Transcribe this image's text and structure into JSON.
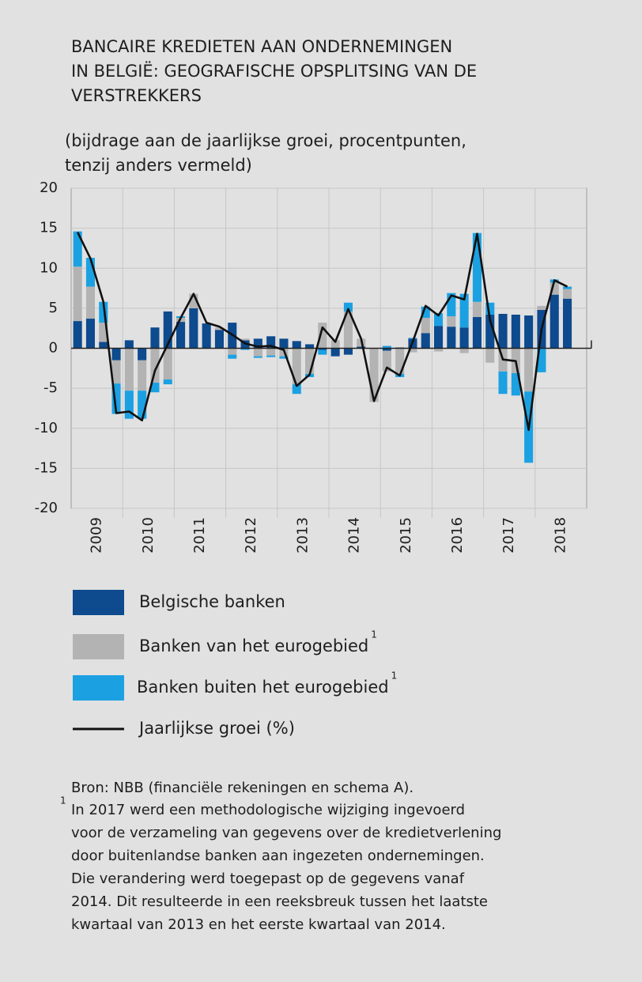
{
  "chart_data": {
    "type": "bar",
    "stacked": true,
    "title": [
      "BANCAIRE KREDIETEN AAN ONDERNEMINGEN",
      "IN BELGIË: GEOGRAFISCHE OPSPLITSING VAN DE",
      "VERSTREKKERS"
    ],
    "subtitle": [
      "(bijdrage aan de jaarlijkse groei, procentpunten,",
      "tenzij anders vermeld)"
    ],
    "categories": [
      null,
      "2009",
      null,
      null,
      null,
      "2010",
      null,
      null,
      null,
      "2011",
      null,
      null,
      null,
      "2012",
      null,
      null,
      null,
      "2013",
      null,
      null,
      null,
      "2014",
      null,
      null,
      null,
      "2015",
      null,
      null,
      null,
      "2016",
      null,
      null,
      null,
      "2017",
      null,
      null,
      null,
      "2018",
      null,
      null
    ],
    "ylim": [
      -20,
      20
    ],
    "yticks": [
      -20,
      -15,
      -10,
      -5,
      0,
      5,
      10,
      15,
      20
    ],
    "grid": true,
    "series": [
      {
        "name": "Belgische banken",
        "type": "bar",
        "color": "#0d4a8e",
        "values": [
          3.4,
          3.7,
          0.8,
          -1.5,
          1.0,
          -1.5,
          2.6,
          4.6,
          3.3,
          5.0,
          3.1,
          2.3,
          3.2,
          1.0,
          1.2,
          1.5,
          1.2,
          0.9,
          0.5,
          -0.2,
          -1.0,
          -0.8,
          0.2,
          0,
          -0.3,
          0.1,
          1.2,
          1.9,
          2.8,
          2.7,
          2.6,
          3.9,
          4.2,
          4.3,
          4.2,
          4.1,
          4.8,
          6.7,
          6.2,
          null
        ]
      },
      {
        "name": "Banken van het eurogebied",
        "note_mark": "1",
        "type": "bar",
        "color": "#b3b3b3",
        "values": [
          6.8,
          4.0,
          2.4,
          -2.9,
          -5.3,
          -3.8,
          -4.3,
          -3.9,
          0.5,
          1.8,
          0,
          0.3,
          -0.8,
          0.2,
          -1.0,
          -0.9,
          -1.0,
          -4.5,
          -3.2,
          3.2,
          1.0,
          4.6,
          1.0,
          -6.7,
          -2.6,
          -3.2,
          -0.5,
          1.9,
          -0.4,
          1.3,
          -0.6,
          1.9,
          -1.8,
          -2.9,
          -3.1,
          -5.4,
          0.5,
          1.5,
          1.2,
          null
        ]
      },
      {
        "name": "Banken buiten het eurogebied",
        "note_mark": "1",
        "type": "bar",
        "color": "#1ba1e2",
        "values": [
          4.4,
          3.6,
          2.6,
          -3.8,
          -3.5,
          -3.5,
          -1.2,
          -0.6,
          0.2,
          0,
          0,
          0,
          -0.5,
          -0.2,
          -0.2,
          -0.2,
          -0.3,
          -1.2,
          -0.4,
          -0.6,
          0,
          1.1,
          0,
          0,
          0.3,
          -0.4,
          0.1,
          1.4,
          1.6,
          2.9,
          4.2,
          8.6,
          1.5,
          -2.8,
          -2.8,
          -8.9,
          -3.0,
          0.4,
          0.3,
          null
        ]
      },
      {
        "name": "Jaarlijkse groei (%)",
        "type": "line",
        "color": "#111111",
        "values": [
          14.5,
          11.2,
          5.8,
          -8.1,
          -7.9,
          -9.0,
          -2.8,
          0.5,
          3.8,
          6.8,
          3.2,
          2.7,
          1.7,
          0.6,
          0.2,
          0.3,
          -0.2,
          -4.7,
          -3.3,
          2.6,
          0.8,
          4.9,
          1.2,
          -6.6,
          -2.4,
          -3.4,
          0.8,
          5.3,
          4.1,
          6.6,
          6.1,
          14.3,
          3.5,
          -1.4,
          -1.6,
          -10.2,
          2.4,
          8.5,
          7.7,
          null
        ]
      }
    ],
    "source": "Bron: NBB (financiële rekeningen en schema A).",
    "footnote": {
      "mark": "1",
      "lines": [
        "In 2017 werd een methodologische wijziging ingevoerd",
        "voor de verzameling van gegevens over de kredietverlening",
        "door buitenlandse banken aan ingezeten ondernemingen.",
        "Die verandering werd toegepast op de gegevens vanaf",
        "2014. Dit resulteerde in een reeksbreuk tussen het laatste",
        "kwartaal van 2013 en het eerste kwartaal van 2014."
      ]
    }
  }
}
